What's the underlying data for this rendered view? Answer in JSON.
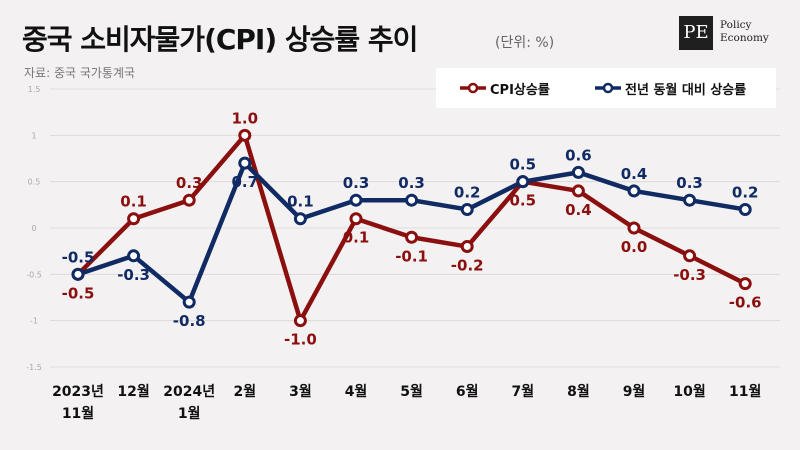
{
  "header": {
    "title": "중국 소비자물가(CPI) 상승률 추이",
    "unit": "(단위: %)",
    "source": "자료: 중국 국가통계국"
  },
  "logo": {
    "mark": "PE",
    "line1": "Policy",
    "line2": "Economy"
  },
  "colors": {
    "cpi": "#8b0f0f",
    "yoy": "#102a63",
    "grid": "#d9d6d6",
    "tick": "#aaaaaa"
  },
  "chart_data": {
    "type": "line",
    "categories": [
      [
        "2023년",
        "11월"
      ],
      [
        "12월"
      ],
      [
        "2024년",
        "1월"
      ],
      [
        "2월"
      ],
      [
        "3월"
      ],
      [
        "4월"
      ],
      [
        "5월"
      ],
      [
        "6월"
      ],
      [
        "7월"
      ],
      [
        "8월"
      ],
      [
        "9월"
      ],
      [
        "10월"
      ],
      [
        "11월"
      ]
    ],
    "series": [
      {
        "name": "CPI상승률",
        "values": [
          -0.5,
          0.1,
          0.3,
          1.0,
          -1.0,
          0.1,
          -0.1,
          -0.2,
          0.5,
          0.4,
          0.0,
          -0.3,
          -0.6
        ],
        "labels": [
          "-0.5",
          "0.1",
          "0.3",
          "1.0",
          "-1.0",
          "0.1",
          "-0.1",
          "-0.2",
          "0.5",
          "0.4",
          "0.0",
          "-0.3",
          "-0.6"
        ],
        "label_pos": [
          "below",
          "above",
          "above",
          "above",
          "below",
          "below",
          "below",
          "below",
          "below",
          "below",
          "below",
          "below",
          "below"
        ]
      },
      {
        "name": "전년 동월 대비 상승률",
        "values": [
          -0.5,
          -0.3,
          -0.8,
          0.7,
          0.1,
          0.3,
          0.3,
          0.2,
          0.5,
          0.6,
          0.4,
          0.3,
          0.2
        ],
        "labels": [
          "-0.5",
          "-0.3",
          "-0.8",
          "0.7",
          "0.1",
          "0.3",
          "0.3",
          "0.2",
          "0.5",
          "0.6",
          "0.4",
          "0.3",
          "0.2"
        ],
        "label_pos": [
          "above",
          "below",
          "below",
          "below",
          "above",
          "above",
          "above",
          "above",
          "above",
          "above",
          "above",
          "above",
          "above"
        ]
      }
    ],
    "yticks": [
      "1.5",
      "1",
      "0.5",
      "0",
      "-0.5",
      "-1",
      "-1.5"
    ],
    "ytick_values": [
      1.5,
      1,
      0.5,
      0,
      -0.5,
      -1,
      -1.5
    ],
    "ylim": [
      -1.5,
      1.5
    ],
    "grid": true,
    "legend_position": "top-right"
  }
}
